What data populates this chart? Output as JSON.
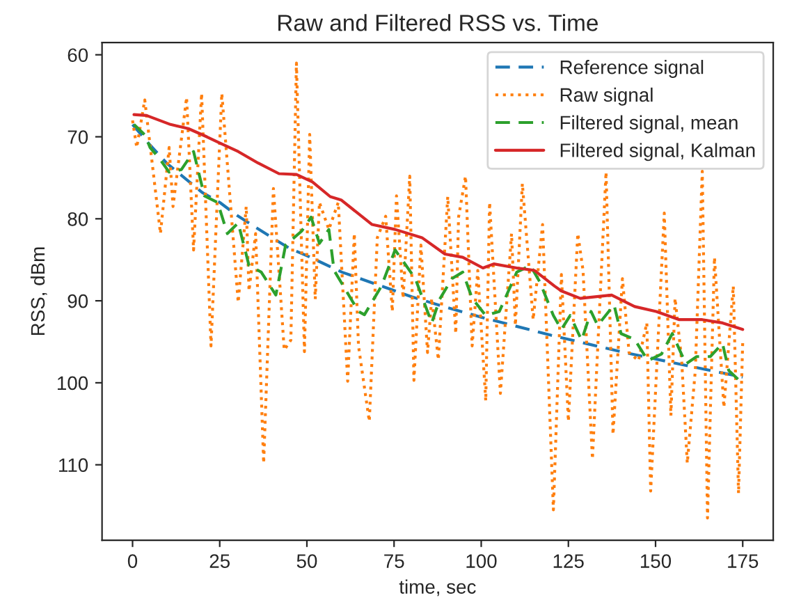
{
  "chart_data": {
    "type": "line",
    "title": "Raw and Filtered RSS vs. Time",
    "xlabel": "time, sec",
    "ylabel": "RSS, dBm",
    "xlim": [
      -8.75,
      183.75
    ],
    "xticks": [
      0,
      25,
      50,
      75,
      100,
      125,
      150,
      175
    ],
    "ylim": [
      119.2,
      58.5
    ],
    "yticks": [
      60,
      70,
      80,
      90,
      100,
      110
    ],
    "grid": false,
    "legend": "top right",
    "series": [
      {
        "name": "Reference signal",
        "color": "#1f77b4",
        "line_style": "dashed",
        "x": [
          0,
          5,
          10,
          20,
          25,
          30,
          40,
          45,
          50,
          60,
          70,
          80,
          90,
          100,
          110,
          120,
          130,
          140,
          150,
          160,
          175
        ],
        "values": [
          68.5,
          71,
          73.3,
          76.8,
          78,
          79.6,
          82.3,
          83.6,
          84.5,
          86.5,
          88,
          89.5,
          90.8,
          92,
          93.1,
          94.2,
          95.2,
          96.2,
          97.1,
          98,
          99.3
        ]
      },
      {
        "name": "Raw signal",
        "color": "#ff7f0e",
        "line_style": "dotted",
        "x": [
          0,
          1.2,
          3.5,
          8,
          10.5,
          11.6,
          15.5,
          17.5,
          19.8,
          22.5,
          25.6,
          30.3,
          32.6,
          33.4,
          35.3,
          37.6,
          40.4,
          43.5,
          45.4,
          47,
          49.3,
          50.8,
          52.4,
          53.6,
          56.3,
          59,
          61.7,
          63.6,
          64.8,
          67.9,
          70.2,
          72.6,
          74.5,
          75.7,
          77.6,
          79.5,
          80.7,
          82.7,
          84.6,
          85.8,
          87.7,
          90.4,
          92.7,
          93.5,
          95.5,
          97.4,
          99,
          101.3,
          102.4,
          105.5,
          108.7,
          109.8,
          111.8,
          114.9,
          117.6,
          120.7,
          123,
          125,
          127.7,
          129.2,
          131.9,
          135.8,
          137.8,
          140.5,
          142.4,
          145.1,
          147.5,
          148.6,
          152.5,
          154.4,
          155.6,
          157.5,
          159.1,
          161.4,
          163.4,
          164.9,
          166.9,
          169.6,
          172.3,
          173.8,
          175
        ],
        "values": [
          68,
          71.3,
          65.5,
          81.8,
          71.3,
          78.5,
          65.2,
          83.8,
          64.7,
          95.5,
          64.7,
          90.2,
          78.5,
          88.8,
          81.8,
          109.8,
          76.3,
          96,
          94.8,
          61,
          96.2,
          69.7,
          89.8,
          78,
          81.3,
          78,
          99.8,
          81.8,
          95.5,
          104.7,
          82.3,
          79.7,
          91.3,
          77.2,
          89.7,
          74.8,
          99.7,
          83.2,
          96.3,
          89.7,
          97.2,
          77.3,
          94,
          79.8,
          74.8,
          95.5,
          86.3,
          102.2,
          78,
          101.3,
          81.8,
          93,
          75.7,
          92.3,
          80.7,
          115.5,
          86.8,
          104.7,
          81.8,
          86.3,
          109.3,
          74.3,
          106.3,
          87.3,
          96.3,
          97.3,
          92.7,
          113.2,
          79.3,
          104,
          89.7,
          97.3,
          109.8,
          98.5,
          74.2,
          116.5,
          84.7,
          103,
          88.2,
          113.5,
          95
        ]
      },
      {
        "name": "Filtered signal, mean",
        "color": "#2ca02c",
        "line_style": "dashed",
        "x": [
          0.4,
          3.6,
          5,
          7.8,
          10.5,
          14,
          17.5,
          20.6,
          24.4,
          27.2,
          30.3,
          33.4,
          36.9,
          41.1,
          43.9,
          48.5,
          51.2,
          53.6,
          56.3,
          57.8,
          64.8,
          66.5,
          71.4,
          75.3,
          81.1,
          85.8,
          88.1,
          91.6,
          94.7,
          97.4,
          101.3,
          105.2,
          110.2,
          114.1,
          116.8,
          120.7,
          123,
          125.5,
          128.8,
          131.5,
          133.4,
          138.1,
          140.1,
          144,
          147.8,
          151.7,
          154.8,
          158.7,
          161.8,
          165.7,
          169.2,
          171,
          174.2
        ],
        "values": [
          68.5,
          69.8,
          71.3,
          72.7,
          74.3,
          74,
          71.8,
          77.2,
          78,
          81.8,
          80.5,
          85.7,
          86.5,
          89.3,
          83.2,
          81.5,
          79.8,
          83,
          81.3,
          86.3,
          91.3,
          91.7,
          88.2,
          83.8,
          87.3,
          92.7,
          89.8,
          87.3,
          86.5,
          89.7,
          91.8,
          91.3,
          86.5,
          85.7,
          87.7,
          91.8,
          93.5,
          91.8,
          94.8,
          91.3,
          93,
          90.5,
          94,
          94.7,
          97.3,
          96.5,
          94,
          97.7,
          96.8,
          96.8,
          95.2,
          98.5,
          99.8
        ]
      },
      {
        "name": "Filtered signal, Kalman",
        "color": "#d62728",
        "line_style": "solid",
        "x": [
          0.4,
          4,
          10.9,
          16,
          21.3,
          25.2,
          30.3,
          36,
          42,
          47,
          51.6,
          56.7,
          59.8,
          68.7,
          75.3,
          83,
          89.6,
          94.7,
          100.5,
          103.6,
          110.2,
          115.3,
          121,
          123,
          128.4,
          137.4,
          144,
          150.2,
          156.8,
          163.4,
          169.2,
          175
        ],
        "values": [
          67.3,
          67.4,
          68.5,
          69,
          70,
          70.8,
          71.8,
          73.2,
          74.5,
          74.6,
          75.5,
          77.3,
          77.7,
          80.7,
          81.3,
          82.3,
          84.3,
          84.7,
          86,
          85.5,
          86,
          86.3,
          88.2,
          88.8,
          89.7,
          89.3,
          90.7,
          91.3,
          92.3,
          92.3,
          92.7,
          93.5
        ]
      }
    ]
  }
}
